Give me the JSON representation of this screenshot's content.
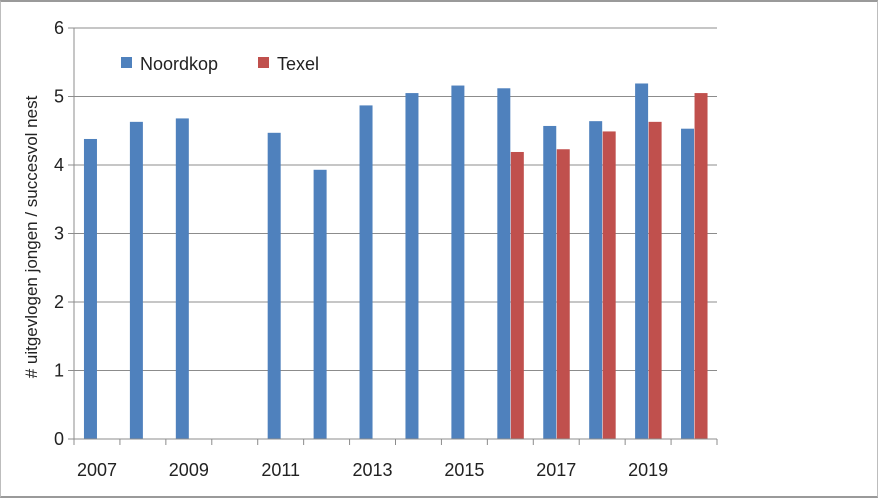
{
  "chart_data": {
    "type": "bar",
    "ylabel": "# uitgevlogen jongen / succesvol nest",
    "ylim": [
      0,
      6
    ],
    "yticks": [
      0,
      1,
      2,
      3,
      4,
      5,
      6
    ],
    "grid": true,
    "legend_position": "top-left",
    "categories": [
      "2007",
      "2008",
      "2009",
      "2010",
      "2011",
      "2012",
      "2013",
      "2014",
      "2015",
      "2016",
      "2017",
      "2018",
      "2019",
      "2020"
    ],
    "xtick_labels": [
      "2007",
      "2009",
      "2011",
      "2013",
      "2015",
      "2017",
      "2019"
    ],
    "series": [
      {
        "name": "Noordkop",
        "color": "#4f81bd",
        "values": [
          4.38,
          4.63,
          4.68,
          null,
          4.47,
          3.93,
          4.87,
          5.05,
          5.16,
          5.12,
          4.57,
          4.64,
          5.19,
          4.53
        ]
      },
      {
        "name": "Texel",
        "color": "#c0504d",
        "values": [
          null,
          null,
          null,
          null,
          null,
          null,
          null,
          null,
          null,
          4.19,
          4.23,
          4.49,
          4.63,
          5.05
        ]
      }
    ]
  }
}
